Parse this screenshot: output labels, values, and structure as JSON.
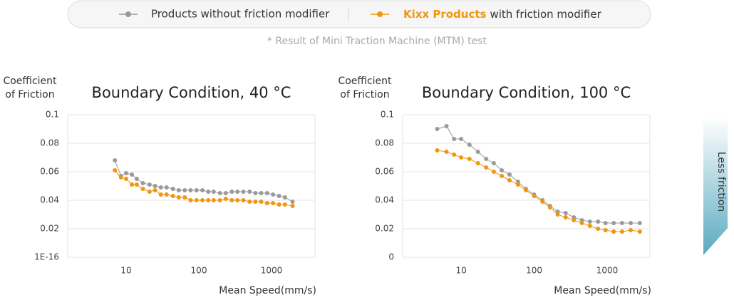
{
  "legend": {
    "items": [
      {
        "text": "Products without friction modifier"
      },
      {
        "brand": "Kixx Products",
        "text": "with friction modifier"
      }
    ]
  },
  "note": "* Result of Mini Traction Machine (MTM) test",
  "annotation": "Less friction",
  "chart_data": [
    {
      "type": "line",
      "title": "Boundary Condition, 40 °C",
      "y_label": [
        "Coefficient",
        "of Friction"
      ],
      "x_label": "Mean Speed(mm/s)",
      "log_x": true,
      "grid": true,
      "xlim": [
        1.57,
        3963
      ],
      "xticks": [
        10,
        100,
        1000
      ],
      "ylim": [
        0,
        0.1
      ],
      "yticks": [
        {
          "value": 1e-16,
          "label": "1E-16"
        },
        0.02,
        0.04,
        0.06,
        0.08,
        0.1
      ],
      "x": [
        7,
        8.5,
        10,
        12,
        14,
        17,
        21,
        25,
        30,
        36,
        44,
        53,
        64,
        77,
        93,
        112,
        135,
        160,
        195,
        235,
        285,
        340,
        410,
        500,
        600,
        720,
        870,
        1050,
        1270,
        1530,
        1950
      ],
      "series": [
        {
          "color": "#9a9a9a",
          "values": [
            0.068,
            0.057,
            0.059,
            0.058,
            0.055,
            0.052,
            0.051,
            0.05,
            0.049,
            0.049,
            0.048,
            0.047,
            0.047,
            0.047,
            0.047,
            0.047,
            0.046,
            0.046,
            0.045,
            0.045,
            0.046,
            0.046,
            0.046,
            0.046,
            0.045,
            0.045,
            0.045,
            0.044,
            0.043,
            0.042,
            0.039
          ]
        },
        {
          "color": "#f0960f",
          "values": [
            0.061,
            0.056,
            0.055,
            0.051,
            0.051,
            0.048,
            0.046,
            0.047,
            0.044,
            0.044,
            0.043,
            0.042,
            0.042,
            0.04,
            0.04,
            0.04,
            0.04,
            0.04,
            0.04,
            0.041,
            0.04,
            0.04,
            0.04,
            0.039,
            0.039,
            0.039,
            0.038,
            0.038,
            0.037,
            0.037,
            0.036
          ]
        }
      ]
    },
    {
      "type": "line",
      "title": "Boundary Condition, 100 °C",
      "y_label": [
        "Coefficient",
        "of Friction"
      ],
      "x_label": "Mean Speed(mm/s)",
      "log_x": true,
      "grid": true,
      "xlim": [
        1.58,
        3850
      ],
      "xticks": [
        10,
        100,
        1000
      ],
      "ylim": [
        0,
        0.1
      ],
      "yticks": [
        0,
        0.02,
        0.04,
        0.06,
        0.08,
        0.1
      ],
      "x": [
        4.7,
        6.3,
        8,
        10,
        13,
        17,
        22,
        28,
        36,
        46,
        60,
        77,
        100,
        130,
        165,
        210,
        270,
        350,
        450,
        580,
        750,
        950,
        1230,
        1600,
        2100,
        2800
      ],
      "series": [
        {
          "color": "#9a9a9a",
          "values": [
            0.09,
            0.092,
            0.083,
            0.083,
            0.079,
            0.074,
            0.069,
            0.066,
            0.061,
            0.058,
            0.053,
            0.048,
            0.044,
            0.04,
            0.036,
            0.032,
            0.031,
            0.028,
            0.026,
            0.025,
            0.025,
            0.024,
            0.024,
            0.024,
            0.024,
            0.024
          ]
        },
        {
          "color": "#f0960f",
          "values": [
            0.075,
            0.074,
            0.072,
            0.07,
            0.069,
            0.066,
            0.063,
            0.06,
            0.057,
            0.054,
            0.051,
            0.047,
            0.043,
            0.039,
            0.035,
            0.03,
            0.028,
            0.026,
            0.024,
            0.022,
            0.02,
            0.019,
            0.018,
            0.018,
            0.019,
            0.018
          ]
        }
      ]
    }
  ]
}
